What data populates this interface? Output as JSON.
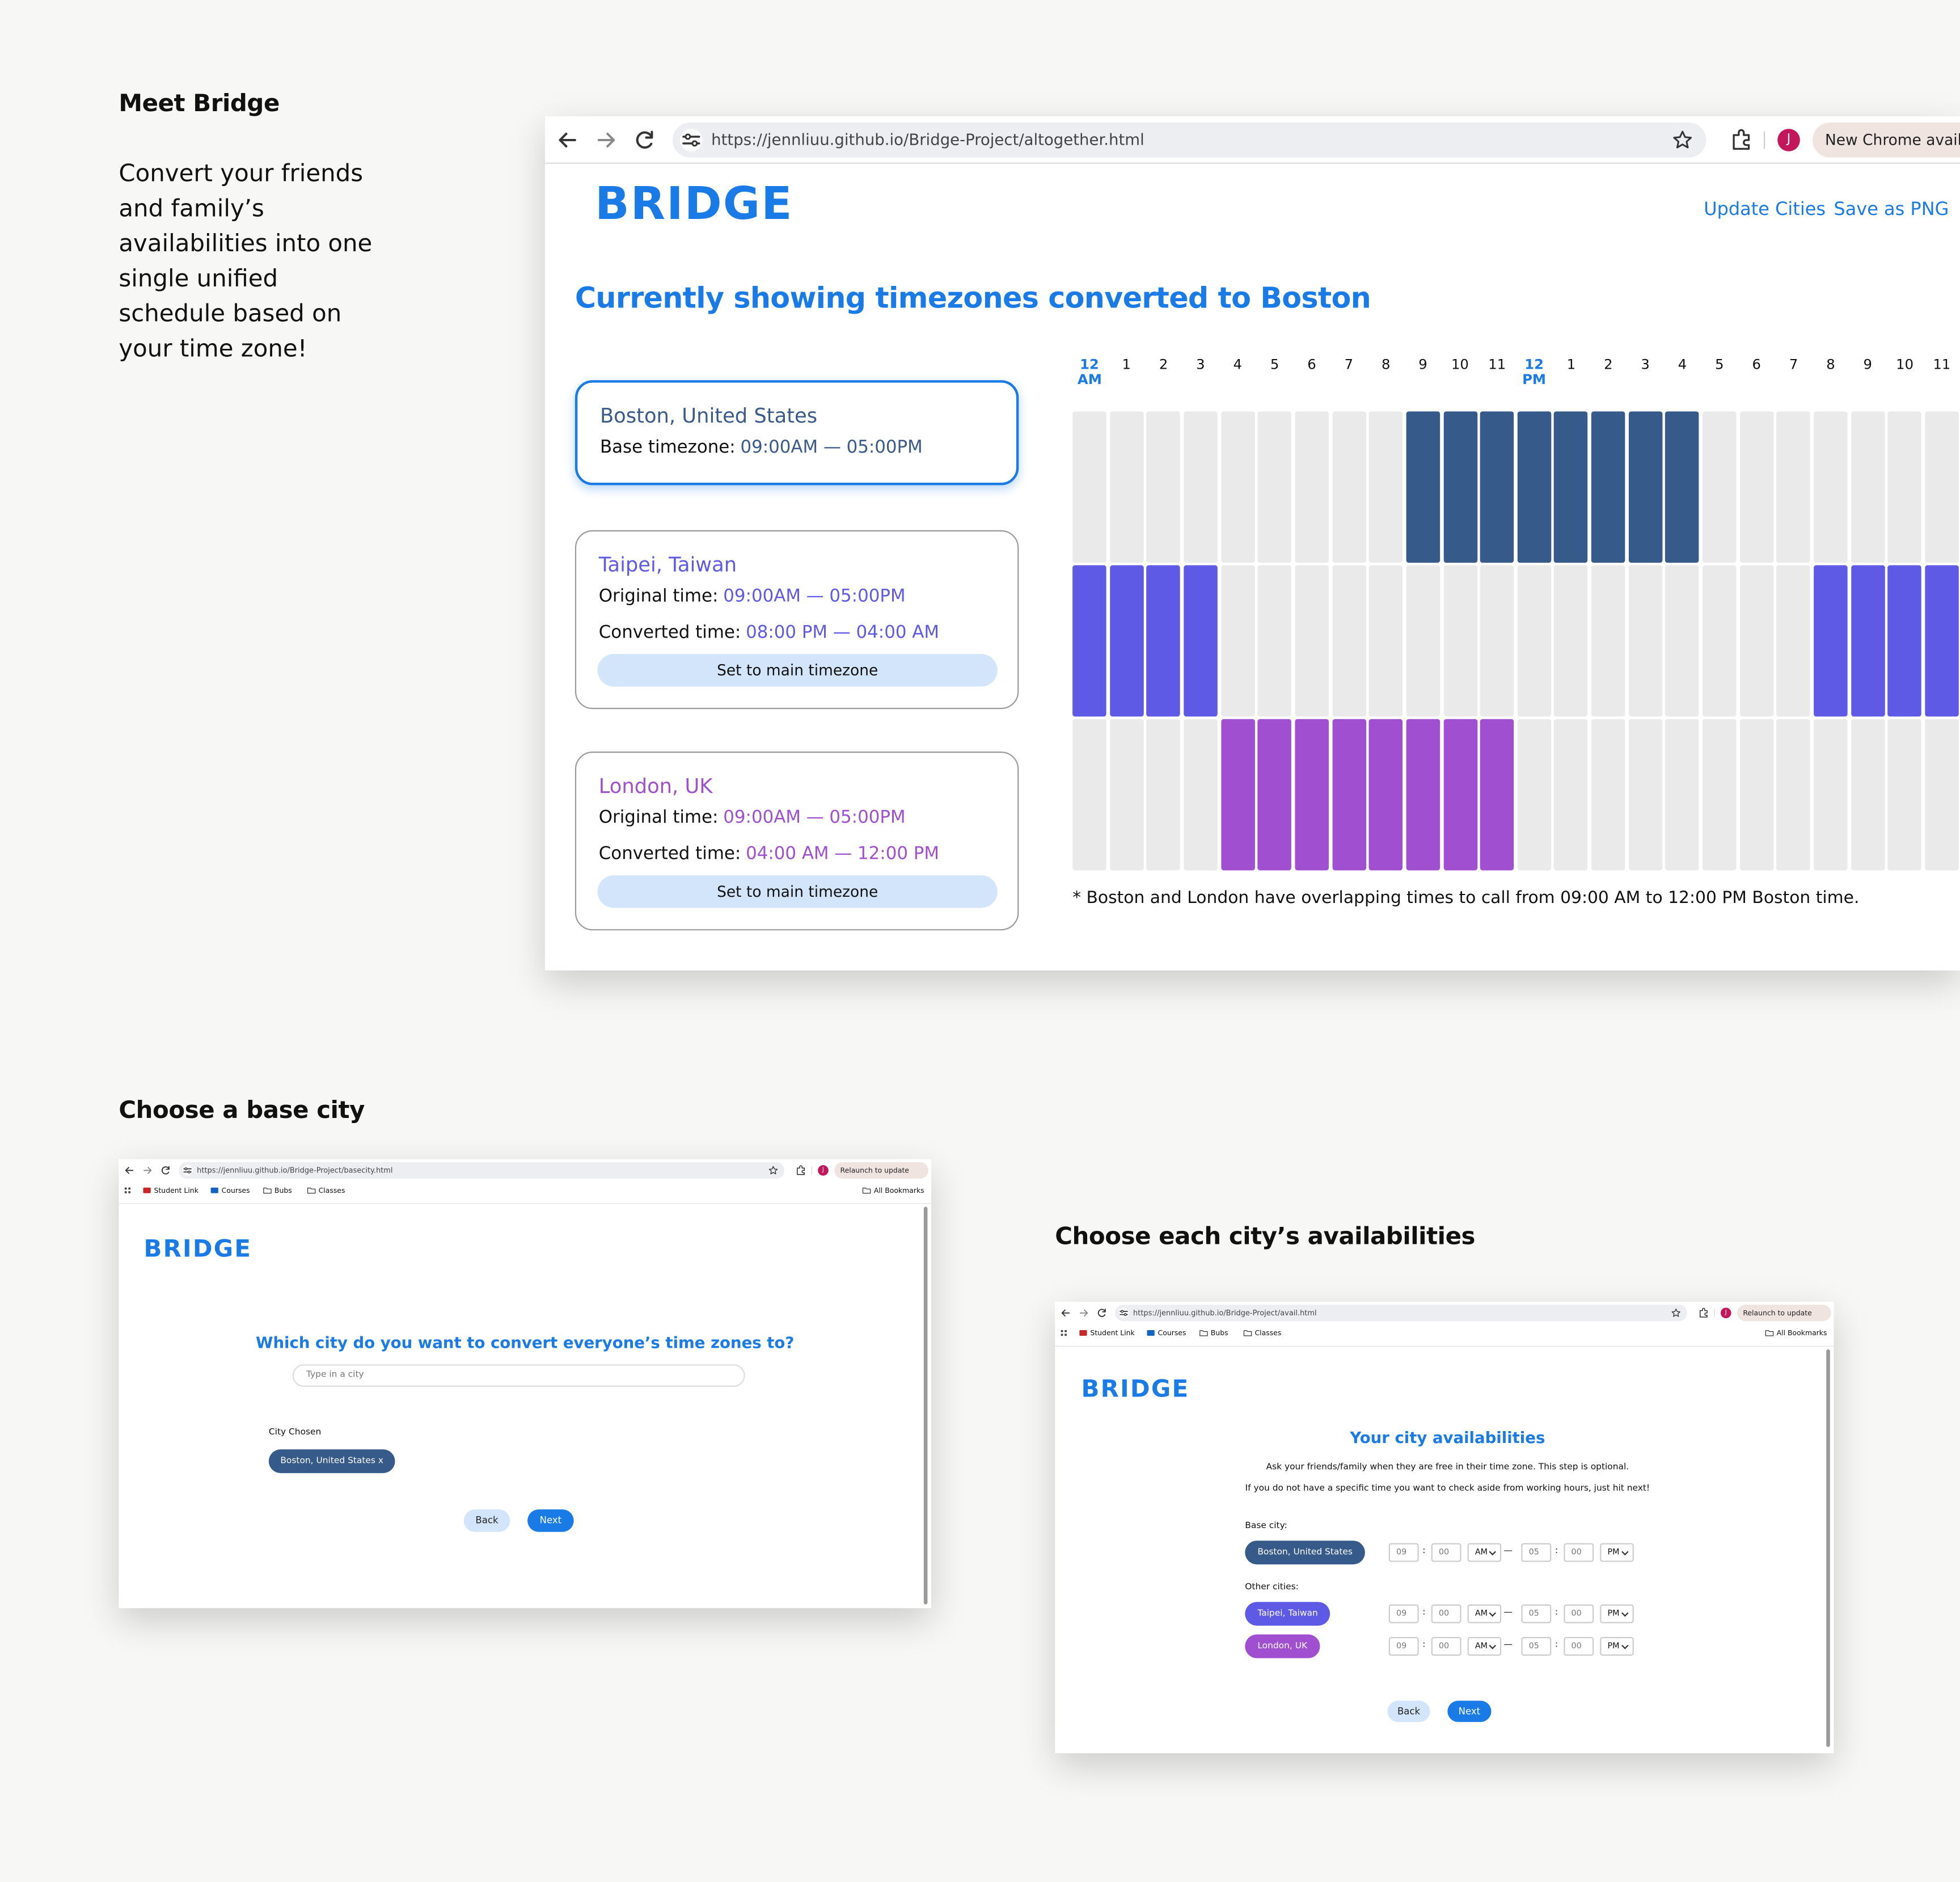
{
  "intro": {
    "title": "Meet Bridge",
    "body": "Convert your friends and family’s availabilities into one single unified schedule based on your time zone!"
  },
  "main_window": {
    "url": "https://jennliuu.github.io/Bridge-Project/altogether.html",
    "profile": "J",
    "update_button": "New Chrome available",
    "logo": "BRIDGE",
    "nav": [
      "Update Cities",
      "Save as PNG"
    ],
    "heading": "Currently showing timezones converted to Boston",
    "cards": [
      {
        "city": "Boston, United States",
        "color": "#3a5a8c",
        "lines": [
          {
            "label": "Base timezone:",
            "value": "09:00AM — 05:00PM"
          }
        ]
      },
      {
        "city": "Taipei, Taiwan",
        "color": "#5f5ae6",
        "lines": [
          {
            "label": "Original time:",
            "value": "09:00AM — 05:00PM"
          },
          {
            "label": "Converted time:",
            "value": "08:00 PM — 04:00 AM"
          }
        ],
        "button": "Set to main timezone"
      },
      {
        "city": "London, UK",
        "color": "#a04fd1",
        "lines": [
          {
            "label": "Original time:",
            "value": "09:00AM — 05:00PM"
          },
          {
            "label": "Converted time:",
            "value": "04:00 AM — 12:00 PM"
          }
        ],
        "button": "Set to main timezone"
      }
    ],
    "schedule": {
      "hour_labels": [
        "12 AM",
        "1",
        "2",
        "3",
        "4",
        "5",
        "6",
        "7",
        "8",
        "9",
        "10",
        "11",
        "12 PM",
        "1",
        "2",
        "3",
        "4",
        "5",
        "6",
        "7",
        "8",
        "9",
        "10",
        "11"
      ],
      "rows": [
        {
          "color": "#365a8a",
          "available_hours": [
            9,
            10,
            11,
            12,
            13,
            14,
            15,
            16
          ]
        },
        {
          "color": "#5f5ae6",
          "available_hours": [
            0,
            1,
            2,
            3,
            20,
            21,
            22,
            23
          ]
        },
        {
          "color": "#a04fd1",
          "available_hours": [
            4,
            5,
            6,
            7,
            8,
            9,
            10,
            11
          ]
        }
      ]
    },
    "note": "* Boston and London have overlapping times to call from 09:00 AM to 12:00 PM Boston time."
  },
  "base_city": {
    "title": "Choose a base city",
    "url": "https://jennliuu.github.io/Bridge-Project/basecity.html",
    "profile": "J",
    "update_button": "Relaunch to update",
    "bookmarks": [
      "Student Link",
      "Courses",
      "Bubs",
      "Classes"
    ],
    "all_bookmarks": "All Bookmarks",
    "logo": "BRIDGE",
    "question": "Which city do you want to convert everyone’s time zones to?",
    "placeholder": "Type in a city",
    "chosen_label": "City Chosen",
    "chip": "Boston, United States x",
    "buttons": [
      "Back",
      "Next"
    ]
  },
  "availabilities": {
    "title": "Choose each city’s availabilities",
    "url": "https://jennliuu.github.io/Bridge-Project/avail.html",
    "profile": "J",
    "update_button": "Relaunch to update",
    "bookmarks": [
      "Student Link",
      "Courses",
      "Bubs",
      "Classes"
    ],
    "all_bookmarks": "All Bookmarks",
    "logo": "BRIDGE",
    "heading": "Your city availabilities",
    "notes": [
      "Ask your friends/family when they are free in their time zone. This step is optional.",
      "If you do not have a specific time you want to check aside from working hours, just hit next!"
    ],
    "base_label": "Base city:",
    "others_label": "Other cities:",
    "separator": ":",
    "dash": "—",
    "cities": [
      {
        "name": "Boston, United States",
        "color": "#365a8a",
        "start": [
          "09",
          "00",
          "AM"
        ],
        "end": [
          "05",
          "00",
          "PM"
        ]
      },
      {
        "name": "Taipei, Taiwan",
        "color": "#5f5ae6",
        "start": [
          "09",
          "00",
          "AM"
        ],
        "end": [
          "05",
          "00",
          "PM"
        ]
      },
      {
        "name": "London, UK",
        "color": "#a04fd1",
        "start": [
          "09",
          "00",
          "AM"
        ],
        "end": [
          "05",
          "00",
          "PM"
        ]
      }
    ],
    "buttons": [
      "Back",
      "Next"
    ]
  }
}
